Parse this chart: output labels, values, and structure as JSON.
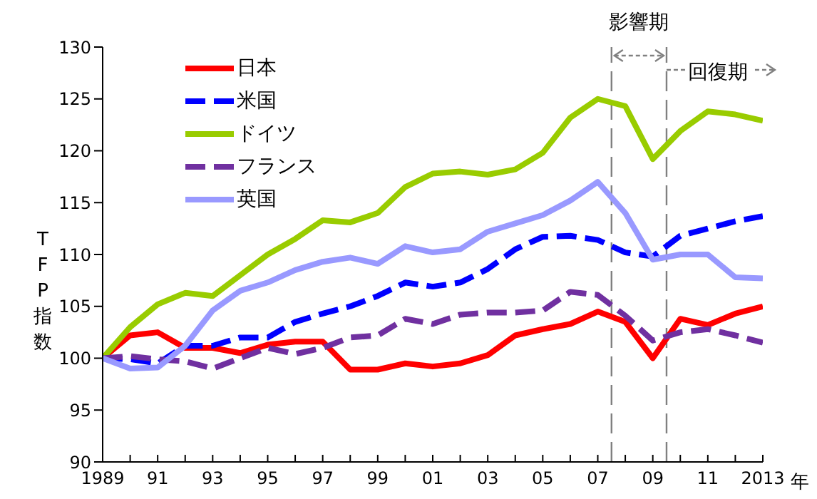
{
  "chart_data": {
    "type": "line",
    "ylabel": "TFP指数",
    "xlabel": "年",
    "x": [
      1989,
      1990,
      1991,
      1992,
      1993,
      1994,
      1995,
      1996,
      1997,
      1998,
      1999,
      2000,
      2001,
      2002,
      2003,
      2004,
      2005,
      2006,
      2007,
      2008,
      2009,
      2010,
      2011,
      2012,
      2013
    ],
    "series": [
      {
        "name": "日本",
        "color": "#ff0000",
        "line_style": "solid",
        "values": [
          100,
          102.2,
          102.5,
          101,
          101,
          100.5,
          101.3,
          101.6,
          101.6,
          98.9,
          98.9,
          99.5,
          99.2,
          99.5,
          100.3,
          102.2,
          102.8,
          103.3,
          104.5,
          103.5,
          100,
          103.8,
          103.2,
          104.3,
          105
        ]
      },
      {
        "name": "米国",
        "color": "#0000ff",
        "line_style": "dashed",
        "values": [
          100,
          99.9,
          99.5,
          101.2,
          101.2,
          102,
          102,
          103.5,
          104.3,
          105,
          106,
          107.3,
          106.9,
          107.3,
          108.6,
          110.5,
          111.7,
          111.8,
          111.4,
          110.2,
          109.8,
          111.8,
          112.5,
          113.2,
          113.7
        ]
      },
      {
        "name": "ドイツ",
        "color": "#99cc00",
        "line_style": "solid",
        "values": [
          100,
          103,
          105.2,
          106.3,
          106,
          108,
          110,
          111.5,
          113.3,
          113.1,
          114,
          116.5,
          117.8,
          118,
          117.7,
          118.2,
          119.8,
          123.2,
          125,
          124.3,
          119.2,
          121.9,
          123.8,
          123.5,
          122.9
        ]
      },
      {
        "name": "フランス",
        "color": "#7030a0",
        "line_style": "dashed",
        "values": [
          100,
          100.2,
          99.9,
          99.7,
          99,
          100,
          101,
          100.4,
          101,
          102,
          102.2,
          103.8,
          103.3,
          104.2,
          104.4,
          104.4,
          104.6,
          106.4,
          106.1,
          104.1,
          101.7,
          102.5,
          102.8,
          102.2,
          101.5
        ]
      },
      {
        "name": "英国",
        "color": "#9999ff",
        "line_style": "solid",
        "values": [
          100,
          99,
          99.1,
          101.2,
          104.6,
          106.5,
          107.3,
          108.5,
          109.3,
          109.7,
          109.1,
          110.8,
          110.2,
          110.5,
          112.2,
          113,
          113.8,
          115.2,
          117,
          114,
          109.5,
          110,
          110,
          107.8,
          107.7
        ]
      }
    ],
    "xlim": [
      1989,
      2013
    ],
    "xticks": [
      1989,
      {
        "value": 1990,
        "label": null
      },
      {
        "value": 1991,
        "label": "91"
      },
      {
        "value": 1992,
        "label": null
      },
      {
        "value": 1993,
        "label": "93"
      },
      {
        "value": 1994,
        "label": null
      },
      {
        "value": 1995,
        "label": "95"
      },
      {
        "value": 1996,
        "label": null
      },
      {
        "value": 1997,
        "label": "97"
      },
      {
        "value": 1998,
        "label": null
      },
      {
        "value": 1999,
        "label": "99"
      },
      {
        "value": 2000,
        "label": null
      },
      {
        "value": 2001,
        "label": "01"
      },
      {
        "value": 2002,
        "label": null
      },
      {
        "value": 2003,
        "label": "03"
      },
      {
        "value": 2004,
        "label": null
      },
      {
        "value": 2005,
        "label": "05"
      },
      {
        "value": 2006,
        "label": null
      },
      {
        "value": 2007,
        "label": "07"
      },
      {
        "value": 2008,
        "label": null
      },
      {
        "value": 2009,
        "label": "09"
      },
      {
        "value": 2010,
        "label": null
      },
      {
        "value": 2011,
        "label": "11"
      },
      {
        "value": 2012,
        "label": null
      },
      2013
    ],
    "ylim": [
      90,
      130
    ],
    "yticks": [
      90,
      95,
      100,
      105,
      110,
      115,
      120,
      125,
      130
    ],
    "ref_lines": [
      {
        "axis": "x",
        "value": 2007.5,
        "color": "#808080",
        "line_style": "dashed"
      },
      {
        "axis": "x",
        "value": 2009.5,
        "color": "#808080",
        "line_style": "dashed"
      }
    ],
    "annotations": [
      "影響期",
      "回復期"
    ],
    "grid": false,
    "legend": "top left",
    "marker": "none"
  }
}
